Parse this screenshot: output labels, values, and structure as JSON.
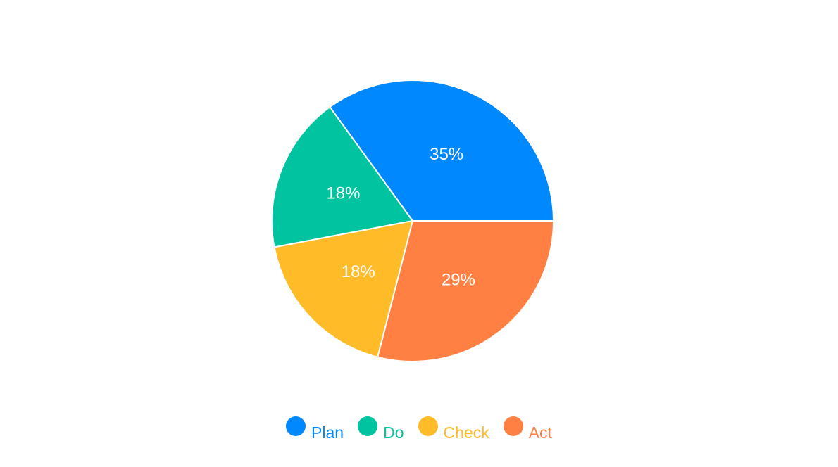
{
  "chart_data": {
    "type": "pie",
    "categories": [
      "Plan",
      "Do",
      "Check",
      "Act"
    ],
    "values": [
      35,
      18,
      18,
      29
    ],
    "labels": [
      "35%",
      "18%",
      "18%",
      "29%"
    ],
    "colors": [
      "#0088FE",
      "#00C49F",
      "#FFBB28",
      "#FF8042"
    ],
    "title": "",
    "legend_position": "bottom"
  },
  "legend": {
    "items": [
      {
        "label": "Plan",
        "color": "#0088FE"
      },
      {
        "label": "Do",
        "color": "#00C49F"
      },
      {
        "label": "Check",
        "color": "#FFBB28"
      },
      {
        "label": "Act",
        "color": "#FF8042"
      }
    ]
  }
}
